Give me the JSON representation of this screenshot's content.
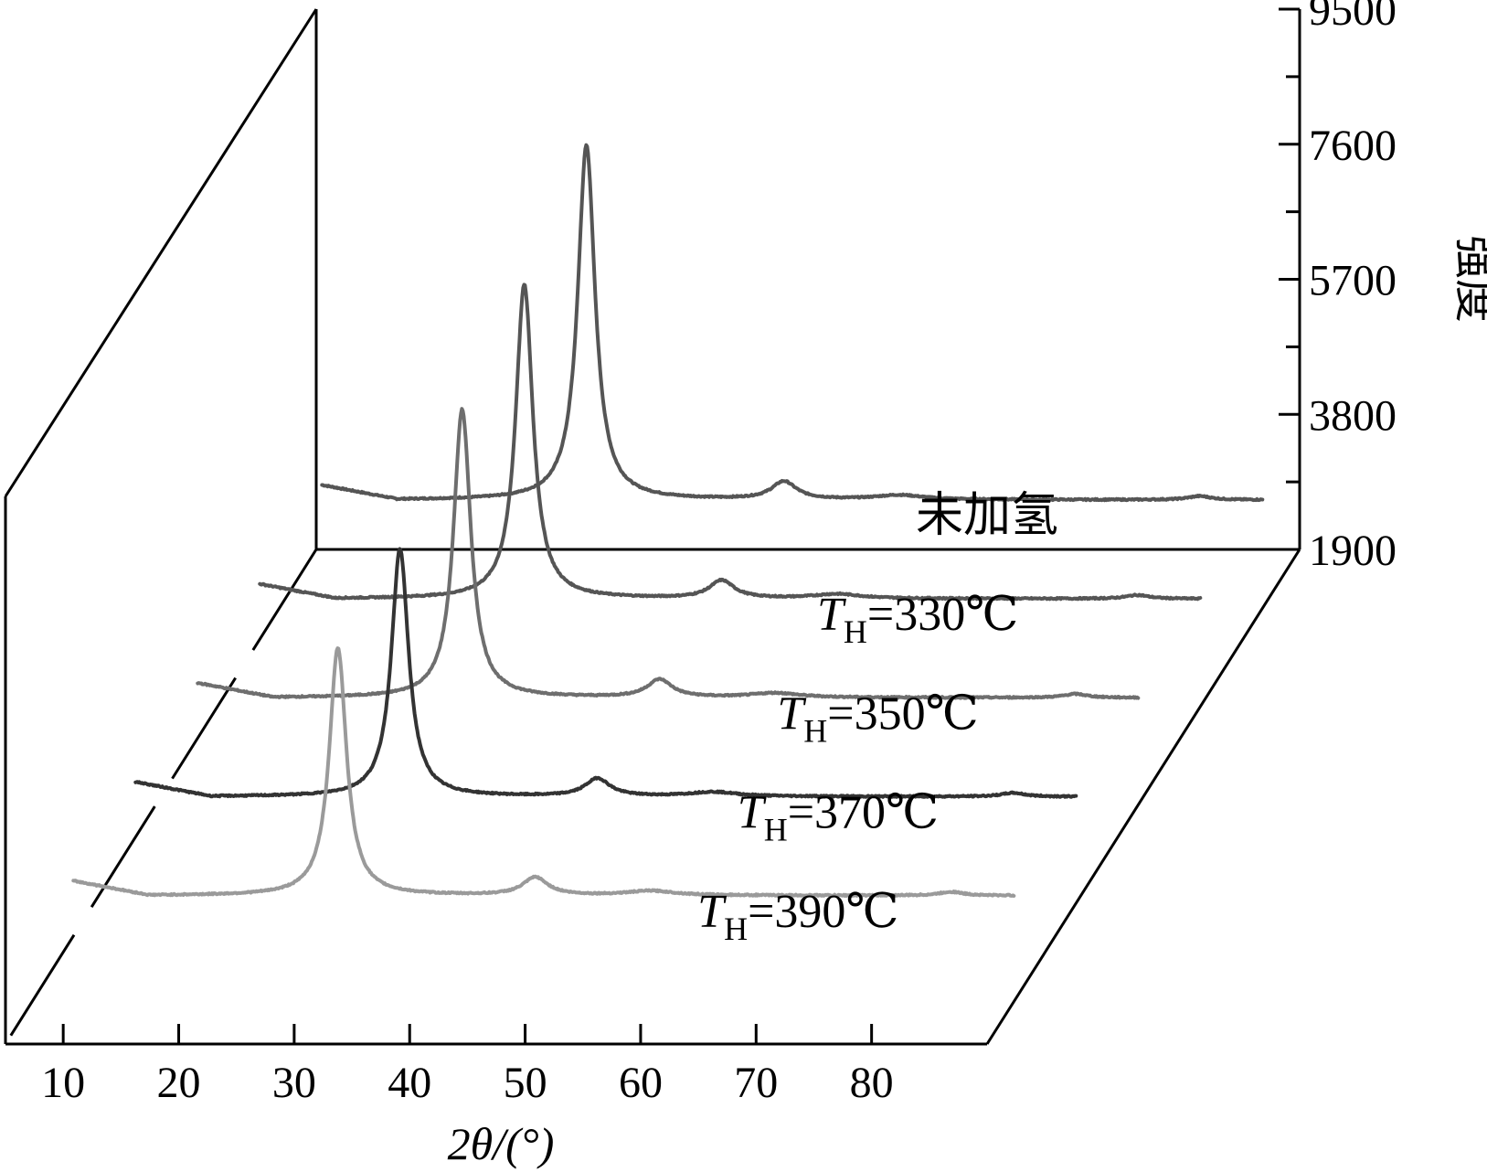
{
  "chart_data": {
    "type": "line",
    "style": "3d-waterfall",
    "title": "",
    "xlabel": "2θ/(°)",
    "ylabel": "强度",
    "xlim": [
      5,
      90
    ],
    "x_ticks": [
      10,
      20,
      30,
      40,
      50,
      60,
      70,
      80
    ],
    "x_tick_labels": [
      "10",
      "20",
      "30",
      "40",
      "50",
      "60",
      "70",
      "80"
    ],
    "ylim": [
      1900,
      9500
    ],
    "y_ticks": [
      1900,
      3800,
      5700,
      7600,
      9500
    ],
    "y_tick_labels": [
      "1900",
      "3800",
      "5700",
      "7600",
      "9500"
    ],
    "series": [
      {
        "name": "T_H=390℃",
        "label_main": "T",
        "label_sub": "H",
        "label_rest": "=390℃",
        "color": "#9a9a9a",
        "baseline": 2250,
        "noise_amp": 18,
        "peaks": [
          {
            "x": 28.4,
            "h": 6700,
            "w": 0.9
          },
          {
            "x": 45.5,
            "h": 480,
            "w": 1.3
          },
          {
            "x": 55.5,
            "h": 120,
            "w": 2.5
          },
          {
            "x": 81.5,
            "h": 100,
            "w": 1.2
          }
        ]
      },
      {
        "name": "T_H=370℃",
        "label_main": "T",
        "label_sub": "H",
        "label_rest": "=370℃",
        "color": "#333333",
        "baseline": 2250,
        "noise_amp": 18,
        "peaks": [
          {
            "x": 28.4,
            "h": 6700,
            "w": 0.9
          },
          {
            "x": 45.5,
            "h": 480,
            "w": 1.3
          },
          {
            "x": 55.5,
            "h": 120,
            "w": 2.5
          },
          {
            "x": 81.5,
            "h": 100,
            "w": 1.2
          }
        ]
      },
      {
        "name": "T_H=350℃",
        "label_main": "T",
        "label_sub": "H",
        "label_rest": "=350℃",
        "color": "#6e6e6e",
        "baseline": 2250,
        "noise_amp": 18,
        "peaks": [
          {
            "x": 28.4,
            "h": 7800,
            "w": 0.9
          },
          {
            "x": 45.5,
            "h": 480,
            "w": 1.3
          },
          {
            "x": 55.5,
            "h": 120,
            "w": 2.5
          },
          {
            "x": 81.5,
            "h": 100,
            "w": 1.2
          }
        ]
      },
      {
        "name": "T_H=330℃",
        "label_main": "T",
        "label_sub": "H",
        "label_rest": "=330℃",
        "color": "#555555",
        "baseline": 2250,
        "noise_amp": 18,
        "peaks": [
          {
            "x": 28.4,
            "h": 8500,
            "w": 0.9
          },
          {
            "x": 45.5,
            "h": 480,
            "w": 1.3
          },
          {
            "x": 55.5,
            "h": 120,
            "w": 2.5
          },
          {
            "x": 81.5,
            "h": 100,
            "w": 1.2
          }
        ]
      },
      {
        "name": "未加氢",
        "label_main": "未加氢",
        "label_sub": "",
        "label_rest": "",
        "color": "#555555",
        "baseline": 2250,
        "noise_amp": 18,
        "peaks": [
          {
            "x": 28.4,
            "h": 9600,
            "w": 0.9
          },
          {
            "x": 45.5,
            "h": 480,
            "w": 1.3
          },
          {
            "x": 55.5,
            "h": 120,
            "w": 2.5
          },
          {
            "x": 81.5,
            "h": 100,
            "w": 1.2
          }
        ]
      }
    ]
  }
}
